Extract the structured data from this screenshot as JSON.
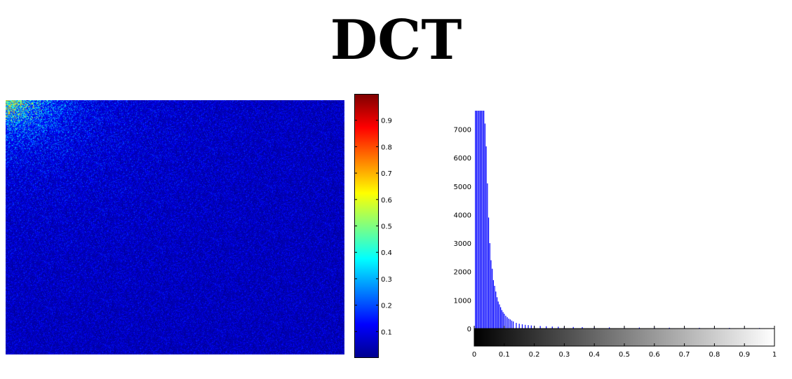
{
  "title": "DCT",
  "colors": {
    "jet_low": "#00008f",
    "jet_high": "#800000",
    "bar_color": "#0000ff"
  },
  "chart_data": [
    {
      "type": "heatmap",
      "colormap": "jet",
      "clim": [
        0,
        1
      ],
      "description_note": "",
      "colorbar": {
        "orientation": "vertical",
        "ticks": [
          0.1,
          0.2,
          0.3,
          0.4,
          0.5,
          0.6,
          0.7,
          0.8,
          0.9
        ],
        "tick_labels": [
          "0.1",
          "0.2",
          "0.3",
          "0.4",
          "0.5",
          "0.6",
          "0.7",
          "0.8",
          "0.9"
        ]
      }
    },
    {
      "type": "bar",
      "ylim": [
        -600,
        7700
      ],
      "xlim": [
        0,
        1
      ],
      "y_ticks": [
        0,
        1000,
        2000,
        3000,
        4000,
        5000,
        6000,
        7000
      ],
      "y_tick_labels": [
        "0",
        "1000",
        "2000",
        "3000",
        "4000",
        "5000",
        "6000",
        "7000"
      ],
      "x_ticks": [
        0,
        0.1,
        0.2,
        0.3,
        0.4,
        0.5,
        0.6,
        0.7,
        0.8,
        0.9,
        1
      ],
      "x_tick_labels": [
        "0",
        "0.1",
        "0.2",
        "0.3",
        "0.4",
        "0.5",
        "0.6",
        "0.7",
        "0.8",
        "0.9",
        "1"
      ],
      "gray_colorbar": true,
      "x": [
        0.004,
        0.008,
        0.012,
        0.016,
        0.02,
        0.024,
        0.028,
        0.032,
        0.036,
        0.04,
        0.044,
        0.048,
        0.052,
        0.056,
        0.06,
        0.064,
        0.068,
        0.072,
        0.076,
        0.08,
        0.084,
        0.088,
        0.092,
        0.096,
        0.1,
        0.105,
        0.11,
        0.115,
        0.12,
        0.125,
        0.13,
        0.14,
        0.15,
        0.16,
        0.17,
        0.18,
        0.19,
        0.2,
        0.22,
        0.24,
        0.26,
        0.28,
        0.3,
        0.33,
        0.36,
        0.4,
        0.45,
        0.5,
        0.55,
        0.6,
        0.65,
        0.7,
        0.75,
        0.8,
        0.85,
        0.9,
        0.95
      ],
      "values": [
        7650,
        7650,
        7650,
        7650,
        7650,
        7650,
        7650,
        7650,
        7200,
        6400,
        5100,
        3900,
        3000,
        2400,
        2100,
        1700,
        1500,
        1300,
        1100,
        950,
        850,
        750,
        650,
        580,
        520,
        450,
        400,
        350,
        320,
        280,
        250,
        200,
        170,
        150,
        130,
        120,
        110,
        100,
        90,
        80,
        70,
        65,
        60,
        55,
        50,
        45,
        40,
        38,
        35,
        33,
        30,
        28,
        27,
        25,
        24,
        22,
        20
      ]
    }
  ]
}
